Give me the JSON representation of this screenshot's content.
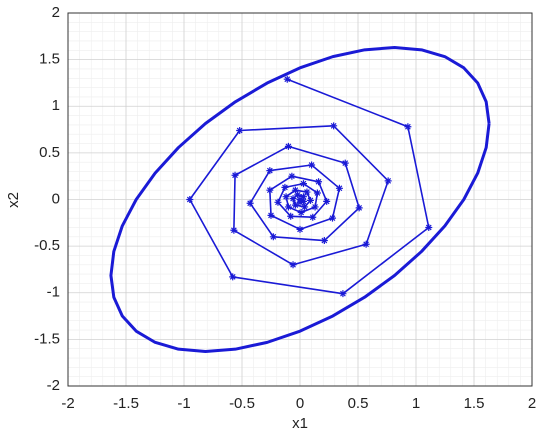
{
  "chart_data": {
    "type": "line",
    "xlabel": "x1",
    "ylabel": "x2",
    "xlim": [
      -2,
      2
    ],
    "ylim": [
      -2,
      2
    ],
    "xticks": [
      -2,
      -1.5,
      -1,
      -0.5,
      0,
      0.5,
      1,
      1.5,
      2
    ],
    "yticks": [
      -2,
      -1.5,
      -1,
      -0.5,
      0,
      0.5,
      1,
      1.5,
      2
    ],
    "grid": true,
    "minor_grid": true,
    "series": [
      {
        "color": "#1a1ad6",
        "marker": "asterisk",
        "x": [
          -0.11,
          0.93,
          1.11,
          0.37,
          -0.58,
          -0.95,
          -0.52,
          0.29,
          0.76,
          0.57,
          -0.06,
          -0.57,
          -0.56,
          -0.1,
          0.39,
          0.51,
          0.21,
          -0.23,
          -0.43,
          -0.26,
          0.1,
          0.34,
          0.28,
          0,
          -0.25,
          -0.26,
          -0.07,
          0.16,
          0.23,
          0.11,
          -0.08,
          -0.19,
          -0.13,
          0.03,
          0.15,
          0.13,
          0.01,
          -0.1,
          -0.12,
          -0.04,
          0.06,
          0.09,
          0.04,
          -0.04,
          -0.06,
          -0.02,
          0.03,
          0.03,
          0,
          0
        ],
        "values": [
          1.29,
          0.78,
          -0.3,
          -1.01,
          -0.83,
          0,
          0.74,
          0.79,
          0.2,
          -0.48,
          -0.7,
          -0.33,
          0.26,
          0.57,
          0.39,
          -0.09,
          -0.44,
          -0.4,
          -0.04,
          0.31,
          0.37,
          0.12,
          -0.2,
          -0.32,
          -0.17,
          0.1,
          0.25,
          0.19,
          -0.02,
          -0.19,
          -0.18,
          -0.03,
          0.13,
          0.17,
          0.07,
          -0.08,
          -0.14,
          -0.08,
          0.03,
          0.1,
          0.08,
          -0.01,
          -0.08,
          -0.06,
          0.01,
          0.05,
          0.03,
          -0.02,
          -0.03,
          0
        ]
      },
      {
        "color": "#1a1ad6",
        "marker": "none",
        "x": [
          1.63,
          1.605,
          1.532,
          1.412,
          1.249,
          1.048,
          0.815,
          0.557,
          0.283,
          0,
          -0.283,
          -0.557,
          -0.815,
          -1.048,
          -1.249,
          -1.412,
          -1.532,
          -1.605,
          -1.63,
          -1.605,
          -1.532,
          -1.412,
          -1.249,
          -1.048,
          -0.815,
          -0.557,
          -0.283,
          0,
          0.283,
          0.557,
          0.815,
          1.048,
          1.249,
          1.412,
          1.532,
          1.605,
          1.63
        ],
        "values": [
          0.815,
          1.048,
          1.249,
          1.412,
          1.532,
          1.605,
          1.63,
          1.605,
          1.532,
          1.412,
          1.249,
          1.048,
          0.815,
          0.557,
          0.283,
          0,
          -0.283,
          -0.557,
          -0.815,
          -1.048,
          -1.249,
          -1.412,
          -1.532,
          -1.605,
          -1.63,
          -1.605,
          -1.532,
          -1.412,
          -1.249,
          -1.048,
          -0.815,
          -0.557,
          -0.283,
          0,
          0.283,
          0.557,
          0.815
        ]
      }
    ]
  }
}
